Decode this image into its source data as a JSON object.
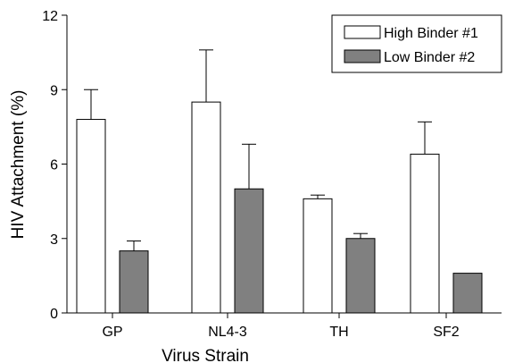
{
  "chart_data": {
    "type": "bar",
    "categories": [
      "GP",
      "NL4-3",
      "TH",
      "SF2"
    ],
    "series": [
      {
        "name": "High Binder #1",
        "values": [
          7.8,
          8.5,
          4.6,
          6.4
        ],
        "error": [
          1.2,
          2.1,
          0.15,
          1.3
        ],
        "color": "#ffffff"
      },
      {
        "name": "Low Binder #2",
        "values": [
          2.5,
          5.0,
          3.0,
          1.6
        ],
        "error": [
          0.4,
          1.8,
          0.2,
          0.0
        ],
        "color": "#808080"
      }
    ],
    "xlabel": "Virus Strain",
    "ylabel": "HIV Attachment (%)",
    "ylim": [
      0,
      12
    ],
    "yticks": [
      0,
      3,
      6,
      9,
      12
    ],
    "grid": false,
    "legend_position": "top-right"
  }
}
